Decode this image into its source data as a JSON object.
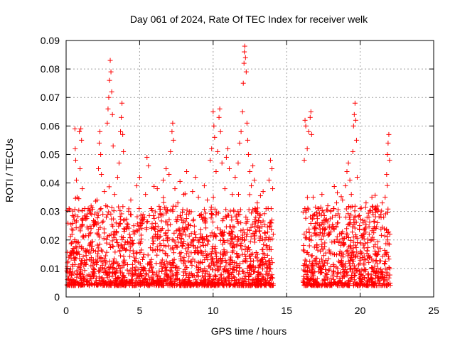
{
  "chart_data": {
    "type": "scatter",
    "title": "Day 061 of 2024, Rate Of TEC Index for receiver welk",
    "xlabel": "GPS time / hours",
    "ylabel": "ROTI / TECUs",
    "xlim": [
      0,
      25
    ],
    "ylim": [
      0,
      0.09
    ],
    "x_ticks": [
      0,
      5,
      10,
      15,
      20,
      25
    ],
    "y_ticks": [
      0,
      0.01,
      0.02,
      0.03,
      0.04,
      0.05,
      0.06,
      0.07,
      0.08,
      0.09
    ],
    "x_tick_labels": [
      "0",
      "5",
      "10",
      "15",
      "20",
      "25"
    ],
    "y_tick_labels": [
      "0",
      "0.01",
      "0.02",
      "0.03",
      "0.04",
      "0.05",
      "0.06",
      "0.07",
      "0.08",
      "0.09"
    ],
    "grid": true,
    "marker": "plus",
    "color": "#ff0000",
    "data_gap": [
      14.1,
      16.1
    ],
    "series": [
      {
        "points": [
          [
            0.1,
            0.012
          ],
          [
            0.2,
            0.031
          ],
          [
            0.3,
            0.009
          ],
          [
            0.4,
            0.022
          ],
          [
            0.5,
            0.015
          ],
          [
            0.55,
            0.027
          ],
          [
            0.6,
            0.059
          ],
          [
            0.62,
            0.052
          ],
          [
            0.65,
            0.048
          ],
          [
            0.7,
            0.041
          ],
          [
            0.75,
            0.035
          ],
          [
            0.8,
            0.019
          ],
          [
            0.9,
            0.058
          ],
          [
            0.95,
            0.045
          ],
          [
            1.0,
            0.059
          ],
          [
            1.05,
            0.055
          ],
          [
            1.1,
            0.038
          ],
          [
            1.2,
            0.021
          ],
          [
            1.3,
            0.028
          ],
          [
            1.4,
            0.013
          ],
          [
            1.5,
            0.031
          ],
          [
            1.6,
            0.018
          ],
          [
            1.7,
            0.024
          ],
          [
            1.8,
            0.011
          ],
          [
            1.9,
            0.026
          ],
          [
            2.0,
            0.016
          ],
          [
            2.1,
            0.034
          ],
          [
            2.2,
            0.045
          ],
          [
            2.25,
            0.054
          ],
          [
            2.3,
            0.058
          ],
          [
            2.35,
            0.05
          ],
          [
            2.4,
            0.043
          ],
          [
            2.5,
            0.029
          ],
          [
            2.6,
            0.037
          ],
          [
            2.7,
            0.032
          ],
          [
            2.8,
            0.061
          ],
          [
            2.85,
            0.066
          ],
          [
            2.9,
            0.07
          ],
          [
            2.95,
            0.076
          ],
          [
            3.0,
            0.083
          ],
          [
            3.05,
            0.079
          ],
          [
            3.1,
            0.072
          ],
          [
            3.15,
            0.064
          ],
          [
            3.2,
            0.053
          ],
          [
            3.3,
            0.036
          ],
          [
            3.4,
            0.023
          ],
          [
            3.5,
            0.042
          ],
          [
            3.6,
            0.047
          ],
          [
            3.7,
            0.058
          ],
          [
            3.75,
            0.063
          ],
          [
            3.8,
            0.068
          ],
          [
            3.85,
            0.057
          ],
          [
            3.9,
            0.051
          ],
          [
            4.0,
            0.027
          ],
          [
            4.2,
            0.019
          ],
          [
            4.4,
            0.034
          ],
          [
            4.6,
            0.025
          ],
          [
            4.8,
            0.039
          ],
          [
            5.0,
            0.042
          ],
          [
            5.2,
            0.028
          ],
          [
            5.4,
            0.036
          ],
          [
            5.5,
            0.049
          ],
          [
            5.6,
            0.046
          ],
          [
            5.8,
            0.031
          ],
          [
            6.0,
            0.024
          ],
          [
            6.2,
            0.038
          ],
          [
            6.4,
            0.029
          ],
          [
            6.6,
            0.041
          ],
          [
            6.8,
            0.045
          ],
          [
            7.0,
            0.043
          ],
          [
            7.1,
            0.051
          ],
          [
            7.2,
            0.058
          ],
          [
            7.25,
            0.061
          ],
          [
            7.3,
            0.055
          ],
          [
            7.4,
            0.038
          ],
          [
            7.6,
            0.033
          ],
          [
            7.8,
            0.028
          ],
          [
            8.0,
            0.036
          ],
          [
            8.2,
            0.044
          ],
          [
            8.4,
            0.03
          ],
          [
            8.6,
            0.037
          ],
          [
            8.8,
            0.042
          ],
          [
            9.0,
            0.035
          ],
          [
            9.2,
            0.029
          ],
          [
            9.4,
            0.039
          ],
          [
            9.6,
            0.034
          ],
          [
            9.8,
            0.048
          ],
          [
            9.9,
            0.052
          ],
          [
            10.0,
            0.065
          ],
          [
            10.05,
            0.06
          ],
          [
            10.1,
            0.056
          ],
          [
            10.2,
            0.044
          ],
          [
            10.3,
            0.051
          ],
          [
            10.4,
            0.063
          ],
          [
            10.45,
            0.066
          ],
          [
            10.5,
            0.058
          ],
          [
            10.6,
            0.047
          ],
          [
            10.8,
            0.038
          ],
          [
            10.9,
            0.049
          ],
          [
            11.0,
            0.052
          ],
          [
            11.1,
            0.045
          ],
          [
            11.3,
            0.036
          ],
          [
            11.5,
            0.042
          ],
          [
            11.7,
            0.047
          ],
          [
            11.8,
            0.054
          ],
          [
            11.9,
            0.058
          ],
          [
            12.0,
            0.065
          ],
          [
            12.05,
            0.075
          ],
          [
            12.1,
            0.082
          ],
          [
            12.12,
            0.086
          ],
          [
            12.15,
            0.088
          ],
          [
            12.2,
            0.084
          ],
          [
            12.25,
            0.079
          ],
          [
            12.3,
            0.061
          ],
          [
            12.35,
            0.055
          ],
          [
            12.4,
            0.05
          ],
          [
            12.5,
            0.044
          ],
          [
            12.6,
            0.039
          ],
          [
            12.7,
            0.046
          ],
          [
            12.8,
            0.041
          ],
          [
            13.0,
            0.033
          ],
          [
            13.2,
            0.029
          ],
          [
            13.4,
            0.037
          ],
          [
            13.6,
            0.031
          ],
          [
            13.8,
            0.041
          ],
          [
            13.9,
            0.048
          ],
          [
            14.0,
            0.045
          ],
          [
            14.05,
            0.038
          ],
          [
            16.2,
            0.048
          ],
          [
            16.25,
            0.062
          ],
          [
            16.3,
            0.06
          ],
          [
            16.4,
            0.052
          ],
          [
            16.5,
            0.058
          ],
          [
            16.6,
            0.063
          ],
          [
            16.65,
            0.065
          ],
          [
            16.7,
            0.057
          ],
          [
            16.8,
            0.035
          ],
          [
            16.9,
            0.029
          ],
          [
            17.0,
            0.024
          ],
          [
            17.2,
            0.031
          ],
          [
            17.4,
            0.036
          ],
          [
            17.6,
            0.027
          ],
          [
            17.8,
            0.032
          ],
          [
            18.0,
            0.03
          ],
          [
            18.2,
            0.024
          ],
          [
            18.4,
            0.033
          ],
          [
            18.6,
            0.028
          ],
          [
            18.8,
            0.034
          ],
          [
            19.0,
            0.039
          ],
          [
            19.1,
            0.044
          ],
          [
            19.2,
            0.047
          ],
          [
            19.3,
            0.041
          ],
          [
            19.4,
            0.036
          ],
          [
            19.5,
            0.051
          ],
          [
            19.55,
            0.06
          ],
          [
            19.6,
            0.064
          ],
          [
            19.65,
            0.068
          ],
          [
            19.7,
            0.062
          ],
          [
            19.75,
            0.055
          ],
          [
            19.8,
            0.042
          ],
          [
            20.0,
            0.031
          ],
          [
            20.2,
            0.026
          ],
          [
            20.4,
            0.033
          ],
          [
            20.6,
            0.028
          ],
          [
            20.8,
            0.035
          ],
          [
            21.0,
            0.024
          ],
          [
            21.2,
            0.03
          ],
          [
            21.4,
            0.029
          ],
          [
            21.5,
            0.033
          ],
          [
            21.6,
            0.028
          ],
          [
            21.7,
            0.035
          ],
          [
            21.8,
            0.043
          ],
          [
            21.85,
            0.05
          ],
          [
            21.9,
            0.054
          ],
          [
            21.95,
            0.057
          ],
          [
            22.0,
            0.048
          ]
        ]
      }
    ]
  }
}
